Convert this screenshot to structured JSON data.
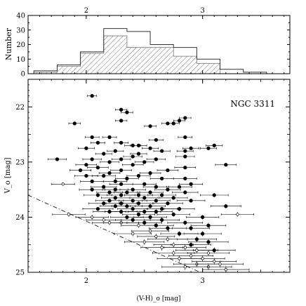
{
  "chart_data": [
    {
      "type": "bar",
      "subtype": "histogram",
      "ylabel": "Number",
      "ylim": [
        0,
        40
      ],
      "xlim": [
        1.5,
        3.75
      ],
      "y_ticks": [
        "0",
        "10",
        "20",
        "30",
        "40"
      ],
      "x_ticks_top": [
        "2",
        "3"
      ],
      "bin_width": 0.2,
      "series": [
        {
          "style": "open",
          "bins": [
            {
              "x0": 1.55,
              "x1": 1.75,
              "value": 2
            },
            {
              "x0": 1.75,
              "x1": 1.95,
              "value": 6
            },
            {
              "x0": 1.95,
              "x1": 2.15,
              "value": 15
            },
            {
              "x0": 2.15,
              "x1": 2.35,
              "value": 31
            },
            {
              "x0": 2.35,
              "x1": 2.55,
              "value": 29
            },
            {
              "x0": 2.55,
              "x1": 2.75,
              "value": 20
            },
            {
              "x0": 2.75,
              "x1": 2.95,
              "value": 18
            },
            {
              "x0": 2.95,
              "x1": 3.15,
              "value": 10
            },
            {
              "x0": 3.15,
              "x1": 3.35,
              "value": 3
            },
            {
              "x0": 3.35,
              "x1": 3.55,
              "value": 1
            }
          ]
        },
        {
          "style": "hatched",
          "bins": [
            {
              "x0": 1.55,
              "x1": 1.75,
              "value": 1
            },
            {
              "x0": 1.75,
              "x1": 1.95,
              "value": 5
            },
            {
              "x0": 1.95,
              "x1": 2.15,
              "value": 14
            },
            {
              "x0": 2.15,
              "x1": 2.35,
              "value": 26
            },
            {
              "x0": 2.35,
              "x1": 2.55,
              "value": 18
            },
            {
              "x0": 2.55,
              "x1": 2.75,
              "value": 18
            },
            {
              "x0": 2.75,
              "x1": 2.95,
              "value": 12
            },
            {
              "x0": 2.95,
              "x1": 3.15,
              "value": 7
            },
            {
              "x0": 3.15,
              "x1": 3.35,
              "value": 0
            },
            {
              "x0": 3.35,
              "x1": 3.55,
              "value": 0
            }
          ]
        }
      ]
    },
    {
      "type": "scatter",
      "annotation": "NGC 3311",
      "xlabel": "(V-H)_o [mag]",
      "ylabel": "V_o [mag]",
      "xlim": [
        1.5,
        3.75
      ],
      "ylim": [
        25,
        21.5
      ],
      "y_inverted": true,
      "x_ticks": [
        "2",
        "3"
      ],
      "y_ticks": [
        "22",
        "23",
        "24",
        "25"
      ],
      "limit_line": {
        "style": "dashed",
        "x": [
          1.5,
          2.98
        ],
        "y": [
          23.6,
          25.0
        ]
      },
      "series": [
        {
          "style": "filled",
          "points": [
            [
              2.05,
              21.8,
              0.04
            ],
            [
              1.9,
              22.3,
              0.05
            ],
            [
              2.3,
              22.05,
              0.05
            ],
            [
              2.35,
              22.1,
              0.05
            ],
            [
              2.3,
              22.25,
              0.05
            ],
            [
              2.85,
              22.2,
              0.05
            ],
            [
              2.8,
              22.25,
              0.05
            ],
            [
              2.75,
              22.3,
              0.05
            ],
            [
              2.7,
              22.3,
              0.05
            ],
            [
              2.55,
              22.35,
              0.05
            ],
            [
              2.6,
              22.6,
              0.06
            ],
            [
              2.85,
              22.55,
              0.06
            ],
            [
              3.1,
              22.7,
              0.07
            ],
            [
              2.05,
              22.55,
              0.06
            ],
            [
              2.2,
              22.55,
              0.06
            ],
            [
              2.1,
              22.65,
              0.06
            ],
            [
              2.3,
              22.65,
              0.06
            ],
            [
              2.4,
              22.7,
              0.07
            ],
            [
              2.9,
              22.75,
              0.07
            ],
            [
              2.0,
              22.75,
              0.07
            ],
            [
              2.45,
              22.7,
              0.07
            ],
            [
              2.55,
              22.75,
              0.07
            ],
            [
              3.05,
              22.75,
              0.07
            ],
            [
              2.85,
              22.8,
              0.07
            ],
            [
              2.65,
              22.8,
              0.07
            ],
            [
              2.25,
              22.8,
              0.07
            ],
            [
              2.15,
              22.85,
              0.07
            ],
            [
              2.45,
              22.85,
              0.07
            ],
            [
              2.85,
              22.9,
              0.08
            ],
            [
              2.4,
              22.9,
              0.08
            ],
            [
              2.05,
              22.95,
              0.08
            ],
            [
              1.75,
              22.95,
              0.08
            ],
            [
              2.3,
              22.95,
              0.08
            ],
            [
              2.6,
              22.95,
              0.08
            ],
            [
              2.2,
              23.0,
              0.08
            ],
            [
              2.5,
              23.0,
              0.08
            ],
            [
              2.0,
              23.05,
              0.09
            ],
            [
              3.2,
              23.05,
              0.09
            ],
            [
              2.4,
              23.05,
              0.09
            ],
            [
              2.1,
              23.1,
              0.09
            ],
            [
              2.85,
              23.1,
              0.09
            ],
            [
              2.3,
              23.15,
              0.09
            ],
            [
              1.95,
              23.15,
              0.09
            ],
            [
              2.7,
              23.15,
              0.09
            ],
            [
              2.2,
              23.2,
              0.09
            ],
            [
              2.55,
              23.2,
              0.09
            ],
            [
              2.0,
              23.25,
              0.1
            ],
            [
              2.15,
              23.25,
              0.1
            ],
            [
              2.45,
              23.25,
              0.1
            ],
            [
              2.85,
              23.3,
              0.1
            ],
            [
              2.35,
              23.3,
              0.1
            ],
            [
              2.65,
              23.3,
              0.1
            ],
            [
              2.25,
              23.35,
              0.1
            ],
            [
              2.05,
              23.35,
              0.1
            ],
            [
              2.9,
              23.4,
              0.1
            ],
            [
              2.5,
              23.4,
              0.1
            ],
            [
              2.3,
              23.4,
              0.1
            ],
            [
              2.8,
              23.45,
              0.11
            ],
            [
              2.15,
              23.45,
              0.11
            ],
            [
              2.6,
              23.45,
              0.11
            ],
            [
              2.25,
              23.5,
              0.11
            ],
            [
              2.4,
              23.5,
              0.11
            ],
            [
              2.7,
              23.5,
              0.11
            ],
            [
              2.05,
              23.5,
              0.11
            ],
            [
              2.35,
              23.55,
              0.11
            ],
            [
              2.55,
              23.55,
              0.11
            ],
            [
              2.2,
              23.55,
              0.11
            ],
            [
              2.85,
              23.55,
              0.11
            ],
            [
              2.45,
              23.6,
              0.12
            ],
            [
              2.3,
              23.6,
              0.12
            ],
            [
              2.1,
              23.6,
              0.12
            ],
            [
              2.65,
              23.6,
              0.12
            ],
            [
              3.1,
              23.6,
              0.12
            ],
            [
              2.25,
              23.65,
              0.12
            ],
            [
              2.5,
              23.65,
              0.12
            ],
            [
              2.75,
              23.65,
              0.12
            ],
            [
              2.4,
              23.7,
              0.12
            ],
            [
              2.2,
              23.7,
              0.12
            ],
            [
              2.6,
              23.7,
              0.12
            ],
            [
              2.9,
              23.7,
              0.12
            ],
            [
              2.3,
              23.75,
              0.13
            ],
            [
              2.15,
              23.75,
              0.13
            ],
            [
              2.45,
              23.75,
              0.13
            ],
            [
              2.7,
              23.75,
              0.13
            ],
            [
              2.35,
              23.8,
              0.13
            ],
            [
              2.55,
              23.8,
              0.13
            ],
            [
              2.25,
              23.8,
              0.13
            ],
            [
              3.2,
              23.8,
              0.13
            ],
            [
              2.4,
              23.85,
              0.13
            ],
            [
              2.65,
              23.85,
              0.13
            ],
            [
              2.1,
              23.85,
              0.13
            ],
            [
              2.8,
              23.85,
              0.13
            ],
            [
              2.5,
              23.9,
              0.14
            ],
            [
              2.3,
              23.9,
              0.14
            ],
            [
              2.2,
              23.9,
              0.14
            ],
            [
              2.6,
              23.9,
              0.14
            ],
            [
              2.45,
              23.95,
              0.14
            ],
            [
              2.75,
              23.95,
              0.14
            ],
            [
              2.35,
              24.0,
              0.14
            ],
            [
              2.55,
              24.0,
              0.14
            ],
            [
              3.0,
              24.0,
              0.14
            ],
            [
              2.65,
              24.05,
              0.15
            ],
            [
              2.4,
              24.05,
              0.15
            ],
            [
              2.85,
              24.1,
              0.15
            ],
            [
              2.5,
              24.1,
              0.15
            ],
            [
              3.05,
              24.15,
              0.15
            ],
            [
              2.6,
              24.15,
              0.15
            ],
            [
              2.7,
              24.2,
              0.16
            ],
            [
              2.9,
              24.2,
              0.16
            ],
            [
              3.0,
              24.3,
              0.16
            ],
            [
              2.8,
              24.3,
              0.16
            ],
            [
              2.95,
              24.4,
              0.17
            ],
            [
              3.05,
              24.45,
              0.17
            ],
            [
              2.9,
              24.5,
              0.17
            ],
            [
              3.1,
              24.6,
              0.18
            ]
          ]
        },
        {
          "style": "open",
          "points": [
            [
              1.85,
              23.95,
              0.14
            ],
            [
              2.05,
              24.0,
              0.14
            ],
            [
              2.15,
              24.05,
              0.15
            ],
            [
              2.3,
              24.1,
              0.15
            ],
            [
              2.45,
              24.15,
              0.15
            ],
            [
              2.55,
              24.25,
              0.16
            ],
            [
              2.4,
              24.3,
              0.16
            ],
            [
              2.6,
              24.35,
              0.16
            ],
            [
              2.7,
              24.4,
              0.17
            ],
            [
              2.5,
              24.45,
              0.17
            ],
            [
              2.75,
              24.5,
              0.17
            ],
            [
              2.65,
              24.55,
              0.18
            ],
            [
              2.85,
              24.55,
              0.18
            ],
            [
              2.95,
              24.6,
              0.18
            ],
            [
              2.75,
              24.65,
              0.18
            ],
            [
              3.05,
              24.65,
              0.18
            ],
            [
              2.9,
              24.7,
              0.19
            ],
            [
              3.0,
              24.75,
              0.19
            ],
            [
              2.8,
              24.75,
              0.19
            ],
            [
              3.1,
              24.8,
              0.19
            ],
            [
              2.95,
              24.85,
              0.2
            ],
            [
              3.15,
              24.85,
              0.2
            ],
            [
              3.05,
              24.9,
              0.2
            ],
            [
              2.85,
              24.9,
              0.2
            ],
            [
              3.2,
              24.95,
              0.2
            ],
            [
              1.8,
              23.4,
              0.1
            ],
            [
              3.3,
              23.95,
              0.14
            ],
            [
              2.2,
              24.1,
              0.15
            ]
          ]
        }
      ]
    }
  ]
}
